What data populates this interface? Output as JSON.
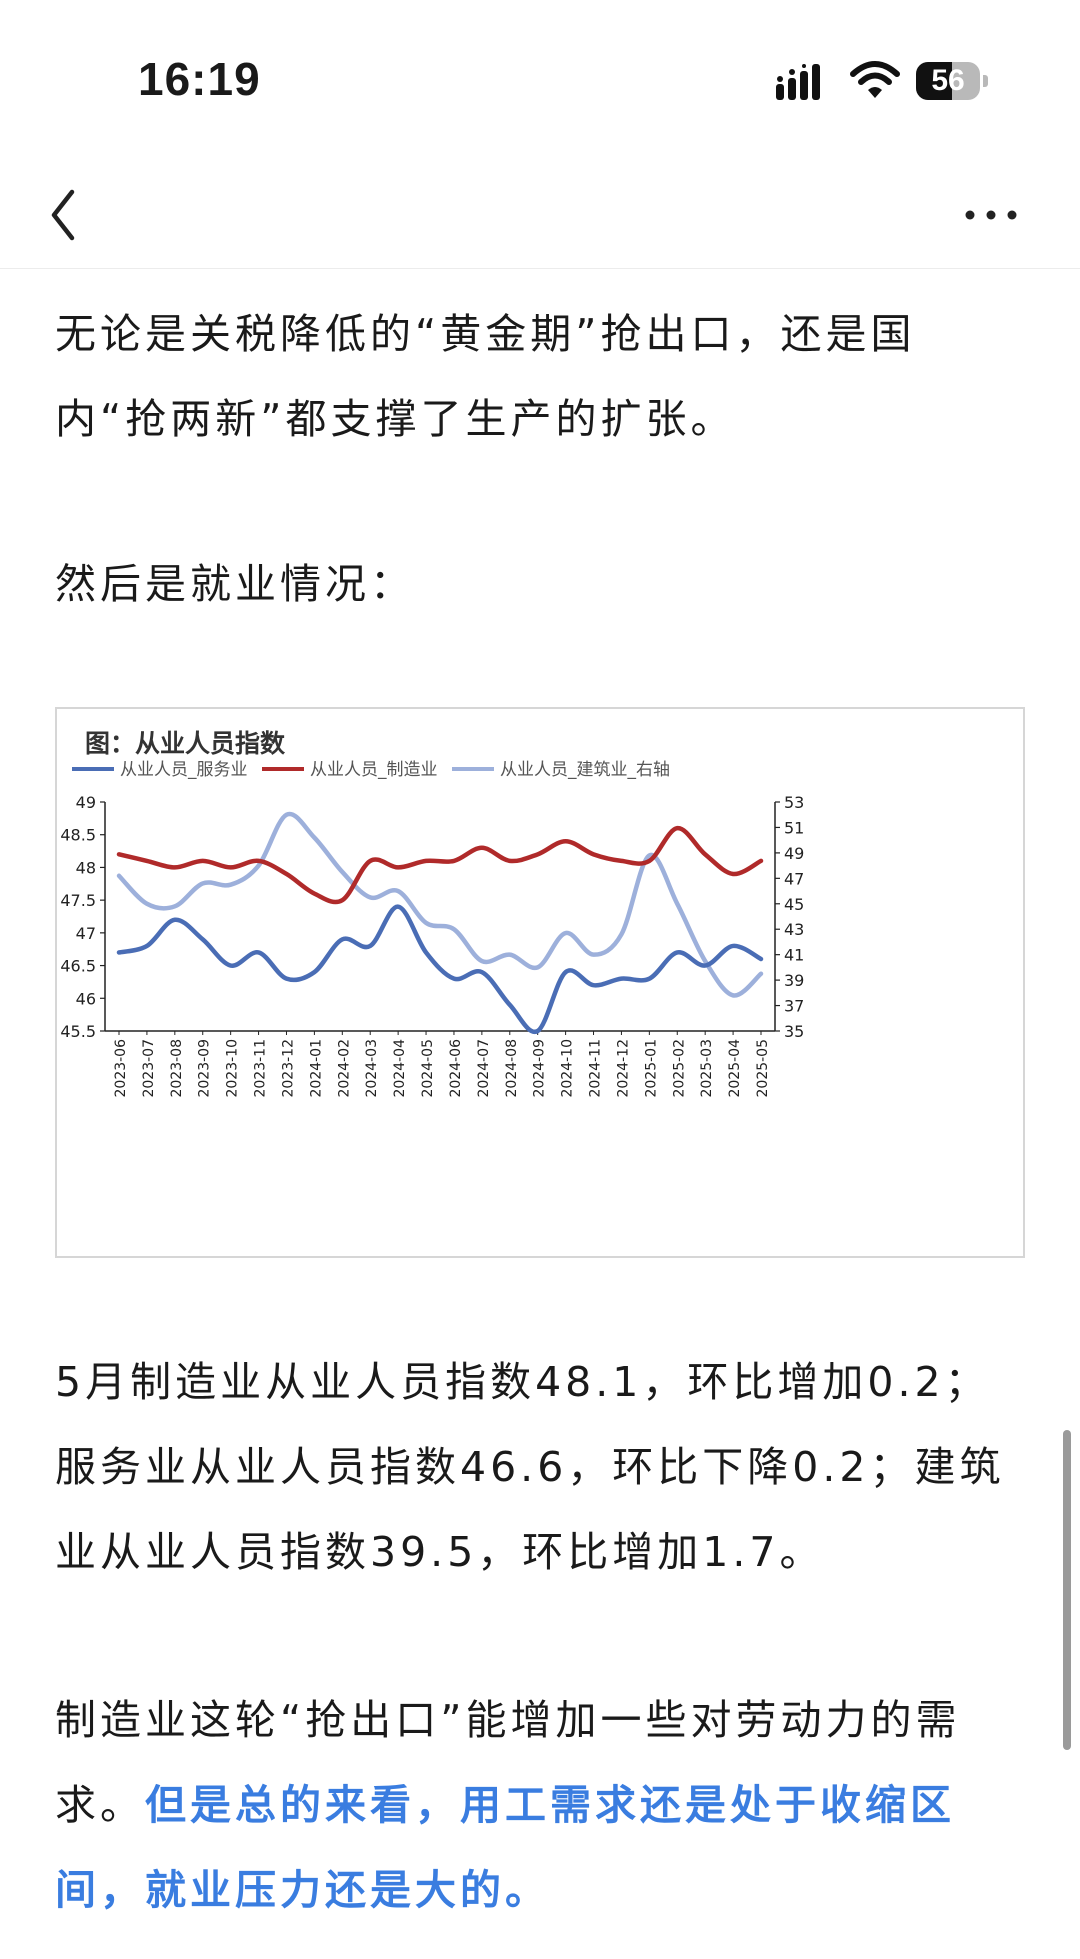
{
  "status": {
    "time": "16:19",
    "battery_level": "56",
    "battery_fraction": 0.56
  },
  "nav": {
    "back_icon": "chevron-left-icon",
    "more_icon": "ellipsis-icon"
  },
  "article": {
    "para1": "无论是关税降低的“黄金期”抢出口，还是国内“抢两新”都支撑了生产的扩张。",
    "para2": "然后是就业情况：",
    "para3": "5月制造业从业人员指数48.1，环比增加0.2；服务业从业人员指数46.6，环比下降0.2；建筑业从业人员指数39.5，环比增加1.7。",
    "para4_normal": "制造业这轮“抢出口”能增加一些对劳动力的需求。",
    "para4_highlight": "但是总的来看，用工需求还是处于收缩区间，就业压力还是大的。"
  },
  "chart_data": {
    "type": "line",
    "title": "图：从业人员指数",
    "categories": [
      "2023-06",
      "2023-07",
      "2023-08",
      "2023-09",
      "2023-10",
      "2023-11",
      "2023-12",
      "2024-01",
      "2024-02",
      "2024-03",
      "2024-04",
      "2024-05",
      "2024-06",
      "2024-07",
      "2024-08",
      "2024-09",
      "2024-10",
      "2024-11",
      "2024-12",
      "2025-01",
      "2025-02",
      "2025-03",
      "2025-04",
      "2025-05"
    ],
    "series": [
      {
        "name": "从业人员_服务业",
        "axis": "left",
        "color": "#4a6db5",
        "values": [
          46.7,
          46.8,
          47.2,
          46.9,
          46.5,
          46.7,
          46.3,
          46.4,
          46.9,
          46.8,
          47.4,
          46.7,
          46.3,
          46.4,
          45.9,
          45.5,
          46.4,
          46.2,
          46.3,
          46.3,
          46.7,
          46.5,
          46.8,
          46.6
        ]
      },
      {
        "name": "从业人员_制造业",
        "axis": "left",
        "color": "#b02a2a",
        "values": [
          48.2,
          48.1,
          48.0,
          48.1,
          48.0,
          48.1,
          47.9,
          47.6,
          47.5,
          48.1,
          48.0,
          48.1,
          48.1,
          48.3,
          48.1,
          48.2,
          48.4,
          48.2,
          48.1,
          48.1,
          48.6,
          48.2,
          47.9,
          48.1
        ]
      },
      {
        "name": "从业人员_建筑业_右轴",
        "axis": "right",
        "color": "#9db0db",
        "values": [
          47.2,
          45.0,
          44.8,
          46.6,
          46.5,
          48.0,
          52.0,
          50.2,
          47.5,
          45.5,
          46.0,
          43.5,
          43.0,
          40.5,
          41.0,
          40.0,
          42.7,
          41.0,
          42.6,
          48.8,
          45.0,
          40.5,
          37.8,
          39.5
        ]
      }
    ],
    "ylim_left": [
      45.5,
      49
    ],
    "yticks_left": [
      "45.5",
      "46",
      "46.5",
      "47",
      "47.5",
      "48",
      "48.5",
      "49"
    ],
    "ylim_right": [
      35,
      53
    ],
    "yticks_right": [
      "35",
      "37",
      "39",
      "41",
      "43",
      "45",
      "47",
      "49",
      "51",
      "53"
    ],
    "legend": "top",
    "grid": false
  }
}
